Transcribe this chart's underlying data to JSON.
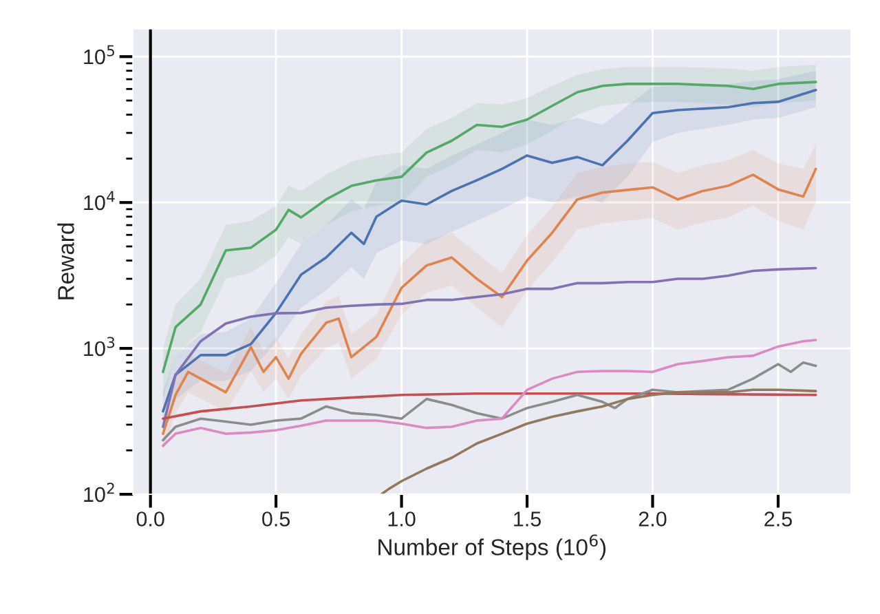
{
  "chart_data": {
    "type": "line",
    "xlabel": "Number of Steps (10$^{6}$)",
    "ylabel": "Reward",
    "log": "y",
    "grid": true,
    "xlim": [
      -0.07,
      2.79
    ],
    "xticks": [
      {
        "value": 0,
        "label": "0.0"
      },
      0.5,
      {
        "value": 1,
        "label": "1.0"
      },
      1.5,
      {
        "value": 2,
        "label": "2.0"
      },
      2.5
    ],
    "ylim": [
      100,
      155000
    ],
    "yticks": [
      {
        "value": 100,
        "label": "10$^{2}$"
      },
      {
        "value": 1000,
        "label": "10$^{3}$"
      },
      {
        "value": 10000,
        "label": "10$^{4}$"
      },
      {
        "value": 100000,
        "label": "10$^{5}$"
      }
    ],
    "ref_lines": [
      {
        "axis": "x",
        "value": 0,
        "color": "#000000"
      }
    ],
    "series": [
      {
        "color": "#55a868",
        "x": [
          0.05,
          0.1,
          0.2,
          0.3,
          0.4,
          0.5,
          0.55,
          0.6,
          0.7,
          0.8,
          0.9,
          1.0,
          1.1,
          1.2,
          1.3,
          1.4,
          1.5,
          1.6,
          1.7,
          1.8,
          1.9,
          2.0,
          2.1,
          2.2,
          2.3,
          2.4,
          2.5,
          2.65
        ],
        "values": [
          690,
          1400,
          2000,
          4700,
          4900,
          6500,
          8900,
          7900,
          10500,
          13000,
          14200,
          15000,
          22000,
          26500,
          34000,
          33000,
          37000,
          46000,
          57000,
          63000,
          65000,
          65000,
          65000,
          64000,
          63000,
          60000,
          65000,
          67000
        ],
        "lower": [
          450,
          900,
          1300,
          3000,
          3300,
          4300,
          5800,
          5200,
          7000,
          8700,
          9500,
          10000,
          15000,
          18000,
          23000,
          22000,
          25000,
          31000,
          40000,
          46000,
          48000,
          49000,
          49000,
          48000,
          47000,
          45000,
          48000,
          50000
        ],
        "upper": [
          1000,
          2000,
          3000,
          7000,
          7500,
          9500,
          13000,
          12000,
          15500,
          19000,
          21000,
          22000,
          32000,
          38000,
          48000,
          47000,
          52000,
          63000,
          75000,
          82000,
          85000,
          85000,
          85000,
          84000,
          83000,
          80000,
          85000,
          88000
        ]
      },
      {
        "color": "#4c72b0",
        "x": [
          0.05,
          0.1,
          0.2,
          0.3,
          0.4,
          0.5,
          0.6,
          0.7,
          0.8,
          0.85,
          0.9,
          1.0,
          1.1,
          1.2,
          1.3,
          1.4,
          1.5,
          1.6,
          1.7,
          1.8,
          1.9,
          2.0,
          2.1,
          2.2,
          2.3,
          2.4,
          2.5,
          2.65
        ],
        "values": [
          370,
          660,
          900,
          900,
          1070,
          1750,
          3200,
          4200,
          6200,
          5200,
          8000,
          10300,
          9700,
          12000,
          14200,
          17000,
          21000,
          18700,
          20500,
          18000,
          26500,
          41000,
          43000,
          44000,
          45000,
          48000,
          49000,
          59000
        ],
        "lower": [
          260,
          450,
          600,
          600,
          700,
          1100,
          1900,
          2500,
          3600,
          3000,
          4500,
          5500,
          5200,
          6300,
          7500,
          9000,
          11000,
          10000,
          11000,
          10000,
          15000,
          26000,
          30000,
          32000,
          34000,
          37000,
          38000,
          45000
        ],
        "upper": [
          500,
          900,
          1250,
          1300,
          1600,
          2800,
          5200,
          7000,
          10500,
          9000,
          14000,
          18000,
          17000,
          21000,
          25000,
          30000,
          37000,
          34000,
          38000,
          34000,
          46000,
          62000,
          63000,
          64000,
          65000,
          68000,
          70000,
          80000
        ]
      },
      {
        "color": "#dd8452",
        "x": [
          0.05,
          0.1,
          0.15,
          0.2,
          0.3,
          0.4,
          0.45,
          0.5,
          0.55,
          0.6,
          0.7,
          0.75,
          0.8,
          0.9,
          1.0,
          1.1,
          1.2,
          1.3,
          1.4,
          1.5,
          1.6,
          1.7,
          1.8,
          1.9,
          2.0,
          2.1,
          2.2,
          2.3,
          2.4,
          2.5,
          2.6,
          2.65
        ],
        "values": [
          260,
          480,
          690,
          620,
          500,
          1020,
          690,
          870,
          620,
          920,
          1500,
          1600,
          870,
          1200,
          2600,
          3700,
          4200,
          3000,
          2250,
          4000,
          6200,
          10500,
          11700,
          12200,
          12700,
          10500,
          12000,
          13000,
          15500,
          12300,
          11000,
          17000
        ],
        "lower": [
          200,
          360,
          500,
          450,
          370,
          700,
          500,
          620,
          450,
          650,
          1000,
          1100,
          620,
          850,
          1700,
          2400,
          2700,
          1900,
          1400,
          2500,
          3900,
          6500,
          7200,
          7500,
          7800,
          6500,
          7300,
          7900,
          9500,
          7500,
          6500,
          10000
        ],
        "upper": [
          330,
          650,
          900,
          830,
          680,
          1400,
          950,
          1200,
          850,
          1250,
          2100,
          2300,
          1250,
          1700,
          3800,
          5500,
          6200,
          4500,
          3300,
          6000,
          9300,
          16000,
          17500,
          18500,
          19000,
          16000,
          18000,
          19500,
          23000,
          18500,
          17000,
          25000
        ]
      },
      {
        "color": "#8172b3",
        "x": [
          0.05,
          0.1,
          0.2,
          0.3,
          0.4,
          0.5,
          0.6,
          0.7,
          0.8,
          0.9,
          1.0,
          1.1,
          1.2,
          1.3,
          1.4,
          1.5,
          1.6,
          1.7,
          1.8,
          1.9,
          2.0,
          2.1,
          2.2,
          2.3,
          2.4,
          2.5,
          2.65
        ],
        "values": [
          290,
          660,
          1120,
          1480,
          1650,
          1740,
          1750,
          1900,
          1960,
          2000,
          2020,
          2150,
          2150,
          2250,
          2350,
          2560,
          2560,
          2800,
          2800,
          2850,
          2850,
          3000,
          3000,
          3150,
          3400,
          3480,
          3550
        ]
      },
      {
        "color": "#c44e52",
        "x": [
          0.05,
          0.2,
          0.4,
          0.6,
          0.8,
          1.0,
          1.3,
          1.6,
          2.0,
          2.65
        ],
        "values": [
          330,
          370,
          400,
          440,
          460,
          480,
          490,
          490,
          490,
          480
        ]
      },
      {
        "color": "#8c8c8c",
        "x": [
          0.05,
          0.1,
          0.2,
          0.3,
          0.4,
          0.5,
          0.6,
          0.7,
          0.8,
          0.9,
          1.0,
          1.1,
          1.2,
          1.3,
          1.4,
          1.5,
          1.6,
          1.7,
          1.8,
          1.85,
          1.9,
          2.0,
          2.1,
          2.2,
          2.3,
          2.4,
          2.5,
          2.55,
          2.6,
          2.65
        ],
        "values": [
          235,
          290,
          330,
          315,
          300,
          320,
          330,
          400,
          360,
          350,
          330,
          450,
          410,
          360,
          330,
          390,
          430,
          480,
          430,
          390,
          450,
          520,
          500,
          510,
          520,
          620,
          780,
          690,
          800,
          760
        ]
      },
      {
        "color": "#da8bc3",
        "x": [
          0.05,
          0.1,
          0.2,
          0.3,
          0.4,
          0.5,
          0.6,
          0.7,
          0.8,
          0.9,
          1.0,
          1.1,
          1.2,
          1.3,
          1.4,
          1.5,
          1.6,
          1.7,
          1.8,
          1.9,
          2.0,
          2.1,
          2.2,
          2.3,
          2.4,
          2.5,
          2.6,
          2.65
        ],
        "values": [
          215,
          260,
          285,
          260,
          265,
          275,
          295,
          320,
          320,
          320,
          305,
          285,
          290,
          320,
          330,
          520,
          620,
          690,
          700,
          700,
          690,
          780,
          820,
          870,
          890,
          1030,
          1120,
          1140
        ]
      },
      {
        "color": "#937860",
        "x": [
          0.92,
          0.95,
          1.0,
          1.1,
          1.2,
          1.3,
          1.4,
          1.5,
          1.6,
          1.7,
          1.8,
          1.9,
          2.0,
          2.1,
          2.2,
          2.3,
          2.4,
          2.5,
          2.65
        ],
        "values": [
          100,
          109,
          123,
          150,
          178,
          223,
          260,
          305,
          340,
          370,
          400,
          450,
          480,
          500,
          500,
          500,
          520,
          520,
          510
        ]
      }
    ]
  }
}
